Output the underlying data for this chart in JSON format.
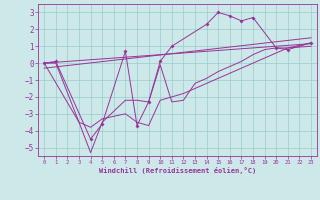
{
  "xlabel": "Windchill (Refroidissement éolien,°C)",
  "xlim": [
    -0.5,
    23.5
  ],
  "ylim": [
    -5.5,
    3.5
  ],
  "yticks": [
    -5,
    -4,
    -3,
    -2,
    -1,
    0,
    1,
    2,
    3
  ],
  "xticks": [
    0,
    1,
    2,
    3,
    4,
    5,
    6,
    7,
    8,
    9,
    10,
    11,
    12,
    13,
    14,
    15,
    16,
    17,
    18,
    19,
    20,
    21,
    22,
    23
  ],
  "bg_color": "#cce8e8",
  "line_color": "#993399",
  "grid_color": "#99cccc",
  "series_markers": {
    "x": [
      0,
      1,
      4,
      5,
      7,
      8,
      9,
      10,
      11,
      14,
      15,
      16,
      17,
      18,
      20,
      21,
      23
    ],
    "y": [
      0.0,
      0.1,
      -4.5,
      -3.6,
      0.7,
      -3.7,
      -2.3,
      0.1,
      1.0,
      2.3,
      3.0,
      2.8,
      2.5,
      2.7,
      0.9,
      0.8,
      1.2
    ]
  },
  "series_line1": {
    "x": [
      0,
      1,
      3,
      4,
      5,
      7,
      8,
      9,
      10,
      11,
      12,
      13,
      14,
      15,
      16,
      17,
      18,
      19,
      20,
      21,
      23
    ],
    "y": [
      0.0,
      0.0,
      -3.5,
      -5.3,
      -3.5,
      -2.2,
      -2.2,
      -2.3,
      -0.1,
      -2.3,
      -2.2,
      -1.2,
      -0.9,
      -0.5,
      -0.2,
      0.1,
      0.5,
      0.8,
      0.9,
      0.9,
      1.0
    ]
  },
  "series_line2": {
    "x": [
      0,
      3,
      4,
      5,
      7,
      8,
      9,
      10,
      11,
      12,
      13,
      14,
      15,
      16,
      17,
      18,
      19,
      20,
      21,
      23
    ],
    "y": [
      0.0,
      -3.5,
      -3.8,
      -3.3,
      -3.0,
      -3.5,
      -3.7,
      -2.2,
      -2.0,
      -1.8,
      -1.5,
      -1.2,
      -0.9,
      -0.6,
      -0.3,
      0.0,
      0.3,
      0.6,
      0.9,
      1.2
    ]
  },
  "series_line3": {
    "x": [
      0,
      23
    ],
    "y": [
      0.0,
      1.15
    ]
  },
  "series_line4": {
    "x": [
      0,
      23
    ],
    "y": [
      -0.3,
      1.5
    ]
  }
}
